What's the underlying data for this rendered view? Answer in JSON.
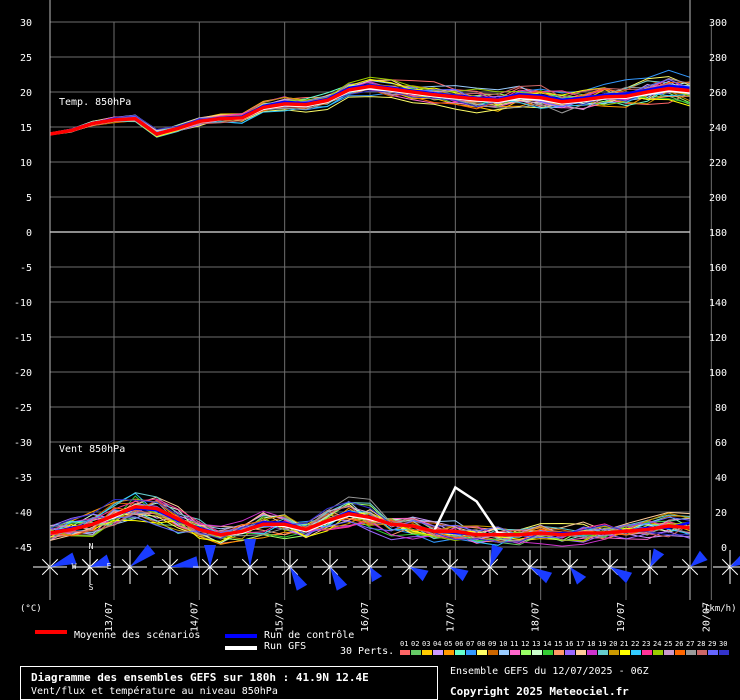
{
  "chart_data": {
    "type": "line",
    "left_axis": {
      "ticks": [
        30,
        25,
        20,
        15,
        10,
        5,
        0,
        -5,
        -10,
        -15,
        -20,
        -25,
        -30,
        -35,
        -40,
        -45
      ],
      "range": [
        -45,
        30
      ],
      "unit_label": "(°C)"
    },
    "right_axis": {
      "ticks": [
        300,
        280,
        260,
        240,
        220,
        200,
        180,
        160,
        140,
        120,
        100,
        80,
        60,
        40,
        20,
        0
      ],
      "range": [
        0,
        300
      ],
      "unit_label": "(km/h)"
    },
    "x_labels": [
      "13/07",
      "14/07",
      "15/07",
      "16/07",
      "17/07",
      "18/07",
      "19/07",
      "20/07"
    ],
    "annotations": {
      "temp_label": "Temp. 850hPa",
      "wind_label": "Vent 850hPa"
    },
    "compass": {
      "n": "N",
      "s": "S",
      "w": "W",
      "e": "E"
    },
    "x_hours": [
      0,
      6,
      12,
      18,
      24,
      30,
      36,
      42,
      48,
      54,
      60,
      66,
      72,
      78,
      84,
      90,
      96,
      102,
      108,
      114,
      120,
      126,
      132,
      138,
      144,
      150,
      156,
      162,
      168,
      174,
      180
    ],
    "temperature": {
      "unit": "°C",
      "mean": [
        14,
        14.5,
        15.5,
        16,
        16.2,
        14,
        14.8,
        15.8,
        16.2,
        16.3,
        17.8,
        18.3,
        18.2,
        18.8,
        20.3,
        20.8,
        20.4,
        20,
        19.6,
        19.3,
        19,
        18.8,
        19.4,
        19.2,
        18.6,
        18.9,
        19.3,
        19.4,
        20,
        20.5,
        20.2
      ],
      "control": [
        14,
        14.6,
        15.6,
        16.1,
        16.1,
        13.9,
        14.9,
        15.9,
        16.3,
        16.5,
        18,
        18.6,
        18.4,
        19,
        20.6,
        21,
        20.6,
        20.2,
        19.8,
        19.5,
        19.2,
        19,
        19.7,
        19.5,
        18.9,
        19.2,
        19.6,
        19.8,
        20.3,
        20.9,
        20.6
      ],
      "gfs": [
        14,
        14.4,
        15.4,
        15.9,
        16.2,
        14.1,
        14.7,
        15.7,
        16.1,
        16.2,
        17.6,
        18.1,
        18,
        18.6,
        20.1,
        20.5,
        20.2,
        19.8,
        19.4,
        19.1,
        18.8,
        18.6,
        19.1,
        18.9,
        18.4,
        18.7,
        19.1,
        19.2,
        19.7,
        20.2,
        19.9
      ]
    },
    "wind": {
      "unit": "km/h",
      "mean": [
        8,
        10,
        13,
        18,
        23,
        22,
        16,
        10,
        7,
        9,
        13,
        13,
        10,
        15,
        19,
        17,
        13,
        12,
        9,
        9,
        7,
        7,
        7,
        8,
        7,
        8,
        8,
        9,
        10,
        12,
        11
      ],
      "control": [
        8,
        11,
        13,
        18,
        22,
        21,
        15,
        11,
        7,
        9,
        14,
        14,
        10,
        15,
        20,
        17,
        13,
        12,
        9,
        8,
        7,
        7,
        7,
        8,
        8,
        8,
        8,
        9,
        11,
        11,
        14
      ],
      "gfs": [
        8,
        10,
        13,
        17,
        23,
        21,
        16,
        10,
        7,
        8,
        13,
        12,
        9,
        14,
        18,
        16,
        13,
        12,
        9,
        34,
        26,
        8,
        7,
        8,
        7,
        8,
        8,
        9,
        10,
        12,
        11
      ]
    },
    "arrow_directions_deg": [
      250,
      250,
      230,
      260,
      180,
      180,
      330,
      330,
      330,
      300,
      300,
      200,
      300,
      320,
      300,
      210,
      230,
      240,
      240,
      280
    ],
    "arrow_lengths": [
      26,
      20,
      28,
      28,
      22,
      28,
      24,
      24,
      14,
      18,
      18,
      22,
      22,
      18,
      22,
      18,
      18,
      18,
      18,
      20
    ],
    "legend": {
      "mean_label": "Moyenne des scénarios",
      "control_label": "Run de contrôle",
      "gfs_label": "Run GFS",
      "perts_label": "30 Perts.",
      "mean_color": "#ff0000",
      "control_color": "#0000ff",
      "gfs_color": "#ffffff",
      "member_numbers": [
        "01",
        "02",
        "03",
        "04",
        "05",
        "06",
        "07",
        "08",
        "09",
        "10",
        "11",
        "12",
        "13",
        "14",
        "15",
        "16",
        "17",
        "18",
        "19",
        "20",
        "21",
        "22",
        "23",
        "24",
        "25",
        "26",
        "27",
        "28",
        "29",
        "30"
      ],
      "member_colors": [
        "#ff6666",
        "#66cc66",
        "#ffcc00",
        "#cc99ff",
        "#ff9900",
        "#66ffcc",
        "#3399ff",
        "#ffff66",
        "#cc6600",
        "#99ccff",
        "#ff66cc",
        "#99ff66",
        "#ccffcc",
        "#33cc33",
        "#ff9966",
        "#9966ff",
        "#ffcc99",
        "#cc33cc",
        "#66cccc",
        "#cc9900",
        "#ffff00",
        "#33ccff",
        "#ff3399",
        "#99cc00",
        "#cc99cc",
        "#ff6600",
        "#999999",
        "#cc6666",
        "#6666ff",
        "#3333cc"
      ]
    }
  },
  "footer": {
    "title": "Diagramme des ensembles GEFS sur 180h : 41.9N 12.4E",
    "subtitle": "Vent/flux et température au niveau 850hPa",
    "run_info": "Ensemble GEFS du 12/07/2025 - 06Z",
    "copyright": "Copyright 2025 Meteociel.fr"
  }
}
